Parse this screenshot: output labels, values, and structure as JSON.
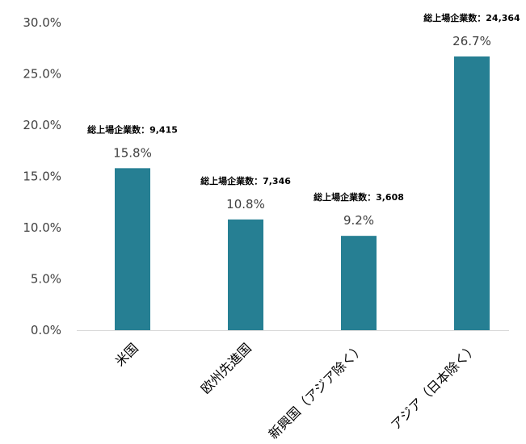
{
  "chart_data": {
    "type": "bar",
    "categories": [
      "米国",
      "欧州先進国",
      "新興国（アジア除く）",
      "アジア（日本除く）"
    ],
    "values": [
      15.8,
      10.8,
      9.2,
      26.7
    ],
    "value_labels": [
      "15.8%",
      "10.8%",
      "9.2%",
      "26.7%"
    ],
    "annotations": [
      "総上場企業数：9,415",
      "総上場企業数：7,346",
      "総上場企業数：3,608",
      "総上場企業数：24,364"
    ],
    "y_ticks": [
      "0.0%",
      "5.0%",
      "10.0%",
      "15.0%",
      "20.0%",
      "25.0%",
      "30.0%"
    ],
    "ylim": [
      0,
      30
    ],
    "grid": false,
    "bar_color": "#267f93",
    "title": "",
    "xlabel": "",
    "ylabel": ""
  }
}
